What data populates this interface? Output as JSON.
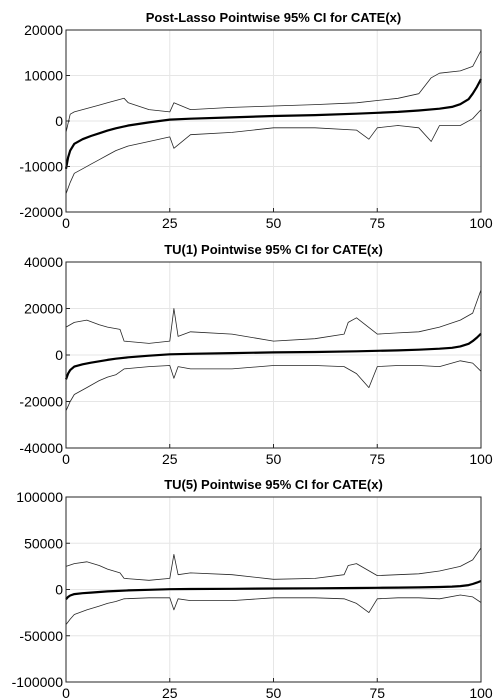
{
  "chart_data": [
    {
      "type": "line",
      "title": "Post-Lasso Pointwise 95% CI for CATE(x)",
      "xlabel": "",
      "ylabel": "",
      "xlim": [
        0,
        100
      ],
      "ylim": [
        -20000,
        20000
      ],
      "x_ticks": [
        "0",
        "25",
        "50",
        "75",
        "100"
      ],
      "y_ticks": [
        "20000",
        "10000",
        "0",
        "-10000",
        "-20000"
      ],
      "grid": true,
      "series": [
        {
          "role": "estimate",
          "x": [
            0,
            0.5,
            1,
            2,
            4,
            6,
            8,
            10,
            12,
            15,
            20,
            25,
            30,
            40,
            50,
            60,
            70,
            75,
            80,
            85,
            90,
            93,
            95,
            97,
            98,
            99,
            100
          ],
          "y": [
            -10500,
            -8000,
            -6500,
            -5000,
            -4000,
            -3300,
            -2700,
            -2100,
            -1600,
            -1000,
            -300,
            300,
            500,
            800,
            1100,
            1300,
            1600,
            1800,
            2000,
            2300,
            2700,
            3100,
            3700,
            4800,
            6000,
            7500,
            9200
          ]
        },
        {
          "role": "upper_bound",
          "x": [
            0,
            1,
            2,
            4,
            6,
            8,
            10,
            12,
            14,
            15,
            20,
            25,
            26,
            30,
            40,
            50,
            60,
            70,
            75,
            80,
            85,
            88,
            90,
            95,
            98,
            100
          ],
          "y": [
            -2500,
            1500,
            2000,
            2500,
            3000,
            3500,
            4000,
            4500,
            5000,
            4000,
            2500,
            2000,
            4000,
            2500,
            3000,
            3300,
            3600,
            4000,
            4500,
            5000,
            6000,
            9500,
            10500,
            11000,
            12000,
            15500
          ]
        },
        {
          "role": "lower_bound",
          "x": [
            0,
            1,
            2,
            4,
            6,
            8,
            10,
            12,
            15,
            20,
            25,
            26,
            30,
            40,
            50,
            60,
            70,
            73,
            75,
            80,
            85,
            88,
            90,
            95,
            98,
            100
          ],
          "y": [
            -16000,
            -13500,
            -11500,
            -10500,
            -9500,
            -8500,
            -7500,
            -6500,
            -5500,
            -4500,
            -3500,
            -6000,
            -3000,
            -2500,
            -1500,
            -1500,
            -2000,
            -4000,
            -1500,
            -1000,
            -1500,
            -4500,
            -1000,
            -1000,
            500,
            2500
          ]
        }
      ]
    },
    {
      "type": "line",
      "title": "TU(1) Pointwise 95% CI for CATE(x)",
      "xlabel": "",
      "ylabel": "",
      "xlim": [
        0,
        100
      ],
      "ylim": [
        -40000,
        40000
      ],
      "x_ticks": [
        "0",
        "25",
        "50",
        "75",
        "100"
      ],
      "y_ticks": [
        "40000",
        "20000",
        "0",
        "-20000",
        "-40000"
      ],
      "grid": true,
      "series": [
        {
          "role": "estimate",
          "x": [
            0,
            0.5,
            1,
            2,
            4,
            6,
            8,
            10,
            12,
            15,
            20,
            25,
            30,
            40,
            50,
            60,
            70,
            75,
            80,
            85,
            90,
            93,
            95,
            97,
            98,
            99,
            100
          ],
          "y": [
            -10500,
            -8000,
            -6500,
            -5000,
            -4000,
            -3300,
            -2700,
            -2100,
            -1600,
            -1000,
            -300,
            300,
            500,
            800,
            1100,
            1300,
            1600,
            1800,
            2000,
            2300,
            2700,
            3100,
            3700,
            4800,
            6000,
            7500,
            9200
          ]
        },
        {
          "role": "upper_bound",
          "x": [
            0,
            2,
            5,
            8,
            10,
            13,
            14,
            20,
            25,
            26,
            27,
            30,
            40,
            50,
            60,
            67,
            68,
            70,
            75,
            80,
            85,
            90,
            95,
            98,
            100
          ],
          "y": [
            12000,
            14000,
            15000,
            13000,
            12000,
            11000,
            6000,
            5000,
            6000,
            20000,
            8000,
            10000,
            9000,
            6000,
            7000,
            9000,
            14000,
            16000,
            9000,
            9500,
            10000,
            12000,
            15000,
            18000,
            28000
          ]
        },
        {
          "role": "lower_bound",
          "x": [
            0,
            1,
            2,
            5,
            8,
            10,
            12,
            14,
            20,
            25,
            26,
            27,
            30,
            40,
            50,
            60,
            67,
            70,
            73,
            75,
            80,
            85,
            90,
            95,
            98,
            100
          ],
          "y": [
            -24000,
            -20000,
            -17000,
            -14000,
            -11000,
            -9500,
            -8500,
            -6000,
            -5000,
            -4500,
            -10000,
            -5000,
            -6000,
            -6000,
            -4500,
            -4500,
            -5000,
            -8000,
            -14000,
            -5000,
            -4500,
            -4500,
            -5000,
            -2500,
            -3500,
            -7000
          ]
        }
      ]
    },
    {
      "type": "line",
      "title": "TU(5) Pointwise 95% CI for CATE(x)",
      "xlabel": "",
      "ylabel": "",
      "xlim": [
        0,
        100
      ],
      "ylim": [
        -100000,
        100000
      ],
      "x_ticks": [
        "0",
        "25",
        "50",
        "75",
        "100"
      ],
      "y_ticks": [
        "100000",
        "50000",
        "0",
        "-50000",
        "-100000"
      ],
      "grid": true,
      "series": [
        {
          "role": "estimate",
          "x": [
            0,
            0.5,
            1,
            2,
            4,
            6,
            8,
            10,
            12,
            15,
            20,
            25,
            30,
            40,
            50,
            60,
            70,
            75,
            80,
            85,
            90,
            93,
            95,
            97,
            98,
            99,
            100
          ],
          "y": [
            -10500,
            -8000,
            -6500,
            -5000,
            -4000,
            -3300,
            -2700,
            -2100,
            -1600,
            -1000,
            -300,
            300,
            500,
            800,
            1100,
            1300,
            1600,
            1800,
            2000,
            2300,
            2700,
            3100,
            3700,
            4800,
            6000,
            7500,
            9200
          ]
        },
        {
          "role": "upper_bound",
          "x": [
            0,
            2,
            5,
            8,
            10,
            13,
            14,
            20,
            25,
            26,
            27,
            30,
            40,
            50,
            60,
            67,
            68,
            70,
            75,
            80,
            85,
            90,
            95,
            98,
            100
          ],
          "y": [
            25000,
            28000,
            30000,
            26000,
            22000,
            18000,
            12000,
            10000,
            12000,
            38000,
            16000,
            18000,
            16000,
            11000,
            12000,
            16000,
            26000,
            28000,
            15000,
            16000,
            17000,
            20000,
            25000,
            32000,
            45000
          ]
        },
        {
          "role": "lower_bound",
          "x": [
            0,
            1,
            2,
            5,
            8,
            10,
            12,
            14,
            20,
            25,
            26,
            27,
            30,
            40,
            50,
            60,
            67,
            70,
            73,
            75,
            80,
            85,
            90,
            95,
            98,
            100
          ],
          "y": [
            -38000,
            -32000,
            -27000,
            -22000,
            -18000,
            -15000,
            -13000,
            -10000,
            -9000,
            -9000,
            -22000,
            -10000,
            -12000,
            -12000,
            -9000,
            -9000,
            -10000,
            -15000,
            -25000,
            -10000,
            -9000,
            -9000,
            -10000,
            -6000,
            -8000,
            -14000
          ]
        }
      ]
    }
  ]
}
